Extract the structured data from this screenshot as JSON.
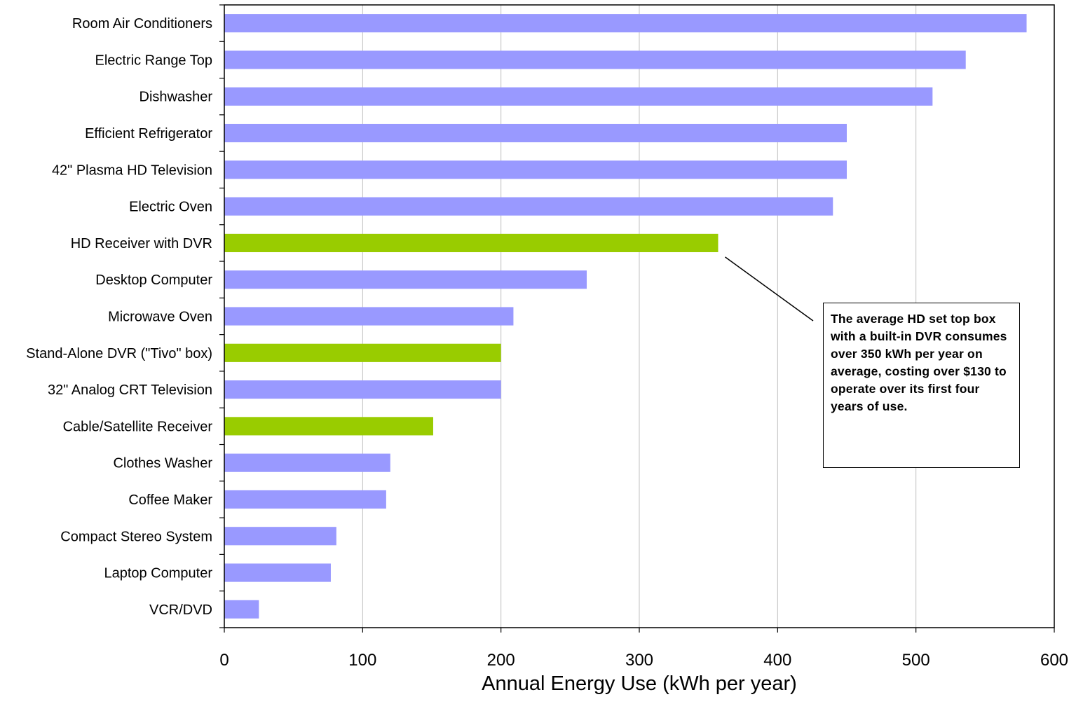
{
  "chart_data": {
    "type": "bar",
    "orientation": "horizontal",
    "categories": [
      "Room Air Conditioners",
      "Electric Range Top",
      "Dishwasher",
      "Efficient Refrigerator",
      "42\" Plasma HD Television",
      "Electric Oven",
      "HD Receiver with DVR",
      "Desktop Computer",
      "Microwave Oven",
      "Stand-Alone DVR (\"Tivo\" box)",
      "32\" Analog CRT Television",
      "Cable/Satellite Receiver",
      "Clothes Washer",
      "Coffee Maker",
      "Compact Stereo System",
      "Laptop Computer",
      "VCR/DVD"
    ],
    "values": [
      580,
      536,
      512,
      450,
      450,
      440,
      357,
      262,
      209,
      200,
      200,
      151,
      120,
      117,
      81,
      77,
      25
    ],
    "highlighted": [
      false,
      false,
      false,
      false,
      false,
      false,
      true,
      false,
      false,
      true,
      false,
      true,
      false,
      false,
      false,
      false,
      false
    ],
    "colors": {
      "default": "#9999ff",
      "highlight": "#99cc00",
      "gridline": "#c0c0c0",
      "axis": "#000000"
    },
    "xlabel": "Annual Energy Use (kWh per year)",
    "ylabel": "",
    "xlim": [
      0,
      600
    ],
    "xticks": [
      0,
      100,
      200,
      300,
      400,
      500,
      600
    ],
    "grid": "vertical",
    "annotation": {
      "text": "The average HD set top box with a built-in DVR consumes over 350 kWh per year on average, costing over $130 to operate over its first four years of use.",
      "target_category": "HD Receiver with DVR"
    }
  }
}
